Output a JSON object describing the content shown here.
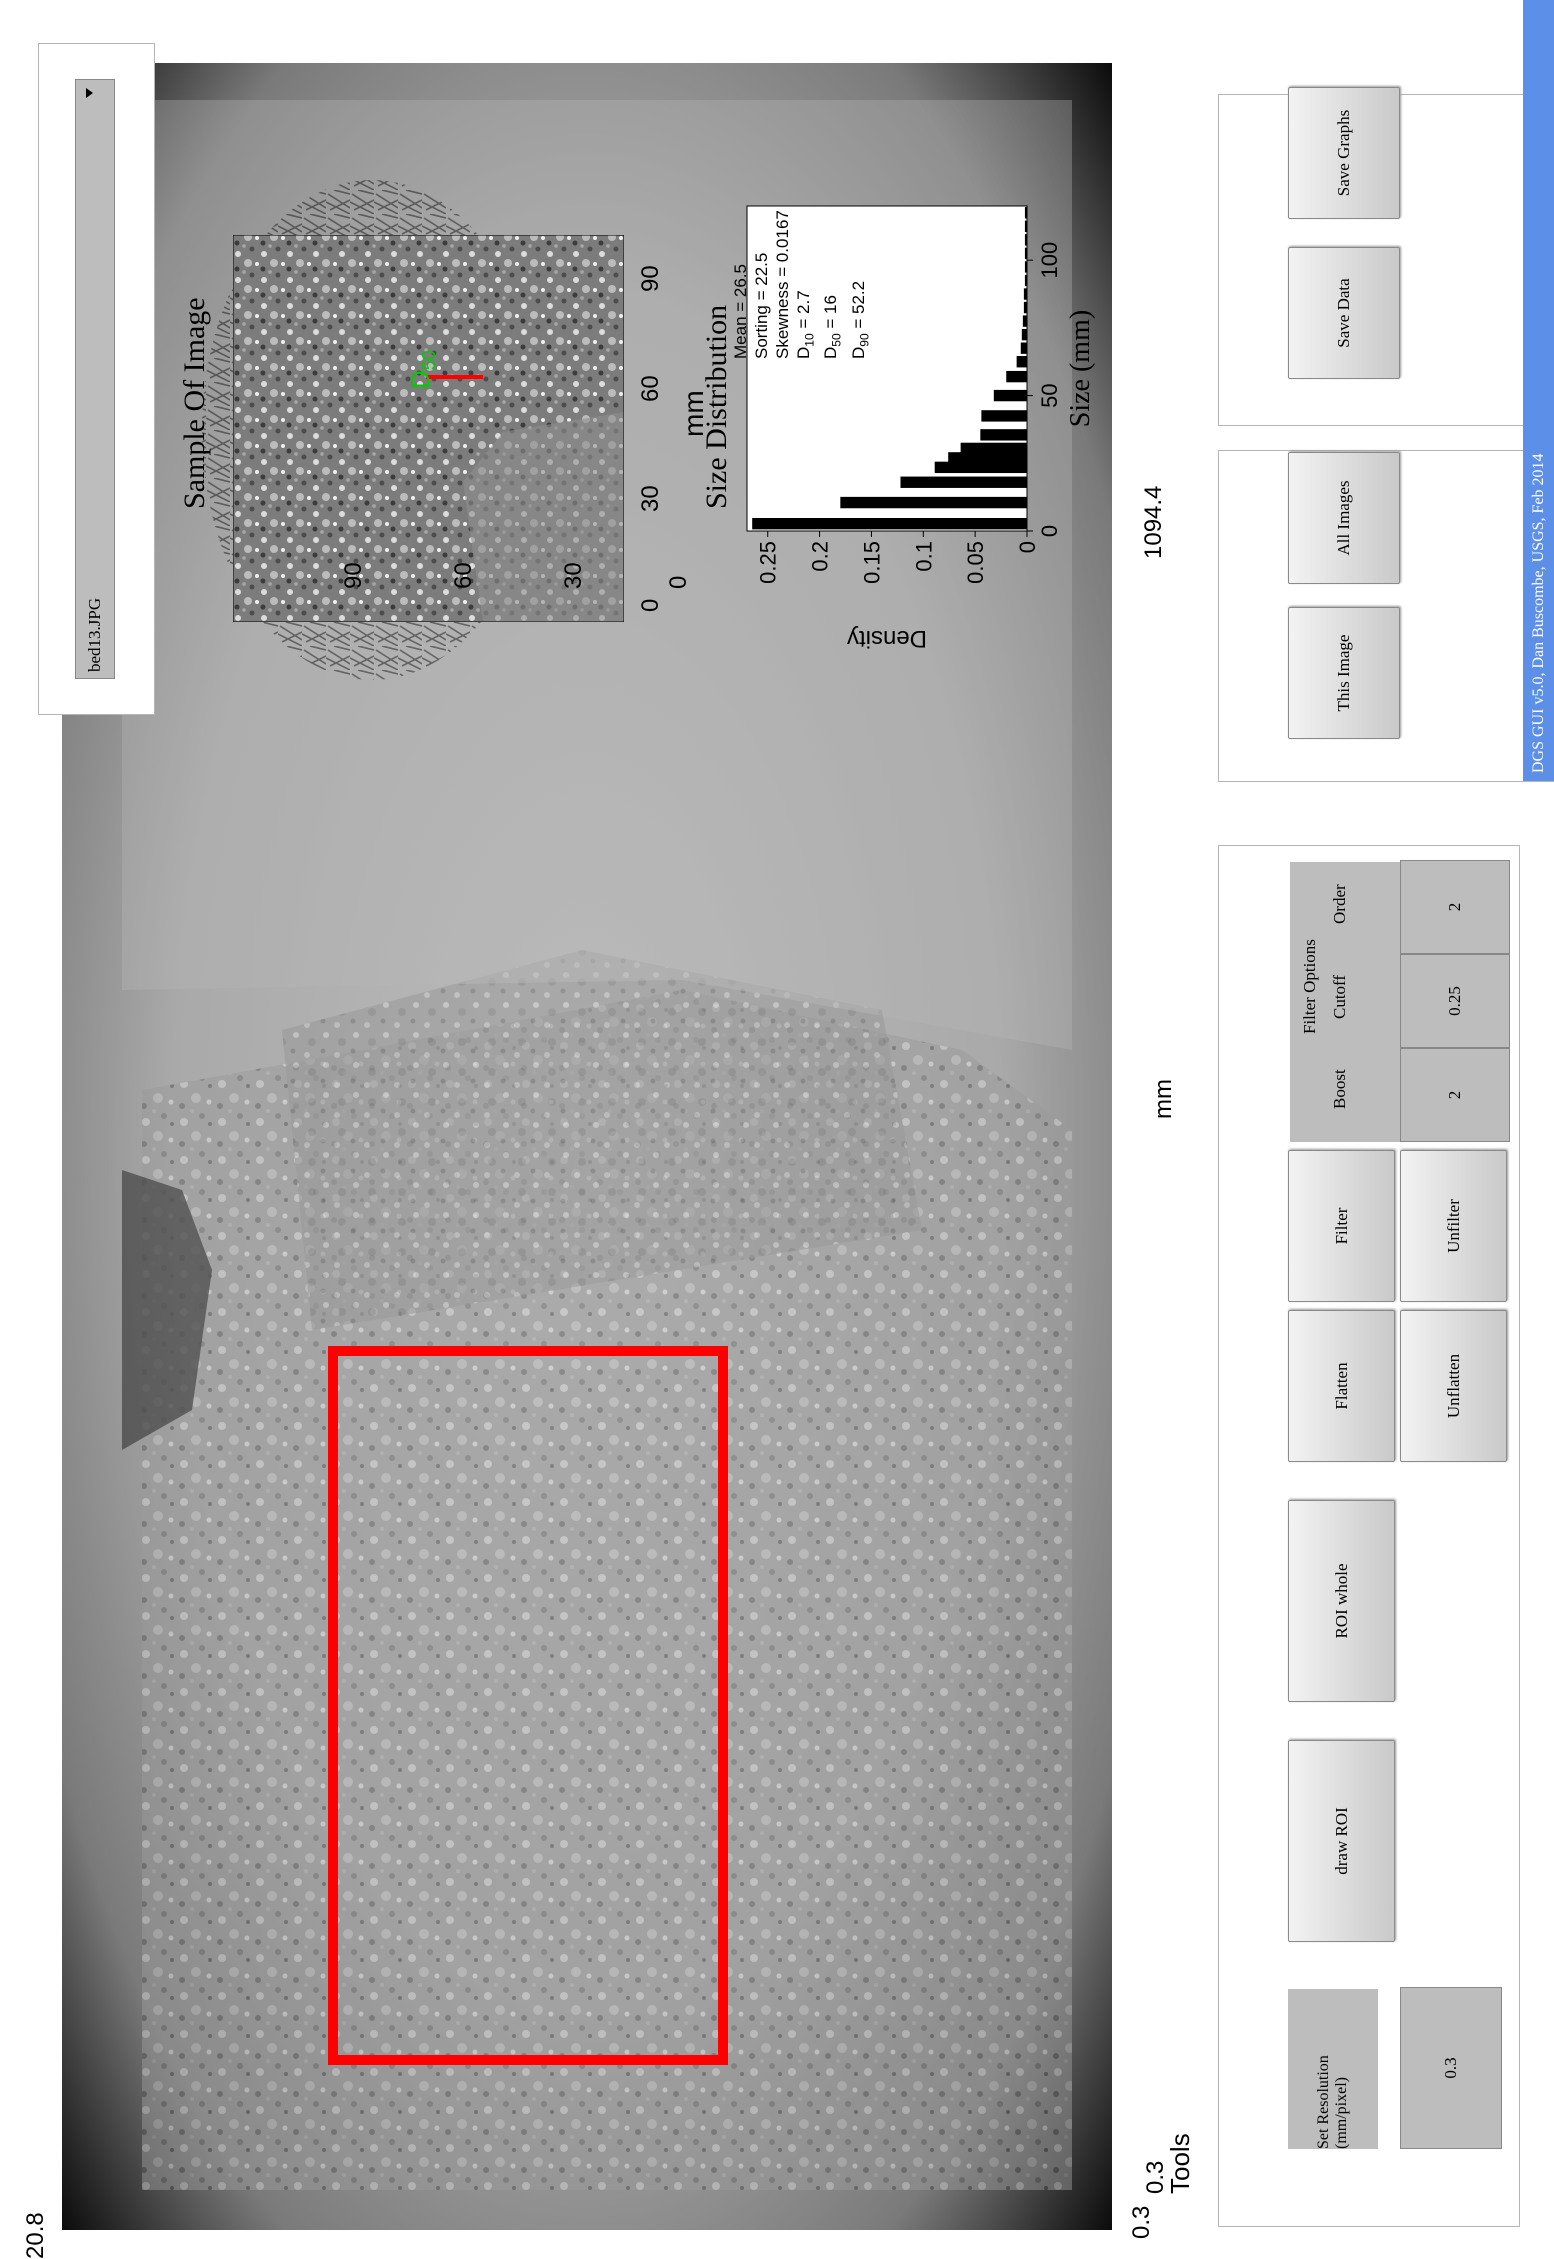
{
  "main_image": {
    "axis_left_top": "20.8",
    "axis_left_bottom": "0.3",
    "axis_bottom_left": "0.3",
    "axis_bottom_right": "1094.4",
    "xlabel": "mm"
  },
  "tools": {
    "title": "Tools",
    "resolution_label": "Set Resolution (mm/pixel)",
    "resolution_value": "0.3",
    "draw_roi": "draw ROI",
    "roi_whole": "ROI whole",
    "flatten": "Flatten",
    "unflatten": "Unflatten",
    "filter": "Filter",
    "unfilter": "Unfilter",
    "filter_options_title": "Filter Options",
    "boost_label": "Boost",
    "cutoff_label": "Cutoff",
    "order_label": "Order",
    "boost_value": "2",
    "cutoff_value": "0.25",
    "order_value": "2"
  },
  "file_select": {
    "selected": "bed13.JPG"
  },
  "sample": {
    "title": "Sample Of Image",
    "ylabel": "mm",
    "xticks": [
      "0",
      "30",
      "60",
      "90"
    ],
    "yticks": [
      "0",
      "30",
      "60",
      "90"
    ],
    "marker_label": "D",
    "marker_sub": "50"
  },
  "actions": {
    "this_image": "This Image",
    "all_images": "All Images",
    "save_data": "Save Data",
    "save_graphs": "Save Graphs"
  },
  "footer": {
    "credit": "DGS GUI v5.0, Dan Buscombe, USGS, Feb 2014",
    "color": "#5b8fe8"
  },
  "chart_data": {
    "type": "bar",
    "title": "Size Distribution",
    "xlabel": "Size (mm)",
    "ylabel": "Density",
    "xlim": [
      0,
      120
    ],
    "ylim": [
      0,
      0.27
    ],
    "xticks": [
      "0",
      "50",
      "100"
    ],
    "yticks": [
      "0",
      "0.05",
      "0.1",
      "0.15",
      "0.2",
      "0.25"
    ],
    "x": [
      2.7,
      10.5,
      18,
      23.5,
      27,
      30.5,
      35.5,
      42.5,
      50,
      57,
      62.5,
      67.5,
      72.5,
      77.5,
      82.5,
      87.5,
      92.5,
      97.5,
      102.5,
      107.5,
      112.5,
      117.5
    ],
    "values": [
      0.265,
      0.18,
      0.122,
      0.089,
      0.076,
      0.064,
      0.045,
      0.044,
      0.032,
      0.02,
      0.01,
      0.006,
      0.005,
      0.004,
      0.003,
      0.003,
      0.002,
      0.002,
      0.002,
      0.002,
      0.002,
      0.002
    ],
    "stats_lines": [
      {
        "text": "Mean = 26.5",
        "sub": ""
      },
      {
        "text": "Sorting = 22.5",
        "sub": ""
      },
      {
        "text": "Skewness = 0.0167",
        "sub": ""
      },
      {
        "text": "D",
        "sub": "10",
        "rest": " = 2.7"
      },
      {
        "text": "D",
        "sub": "50",
        "rest": " = 16"
      },
      {
        "text": "D",
        "sub": "90",
        "rest": " = 52.2"
      }
    ]
  }
}
